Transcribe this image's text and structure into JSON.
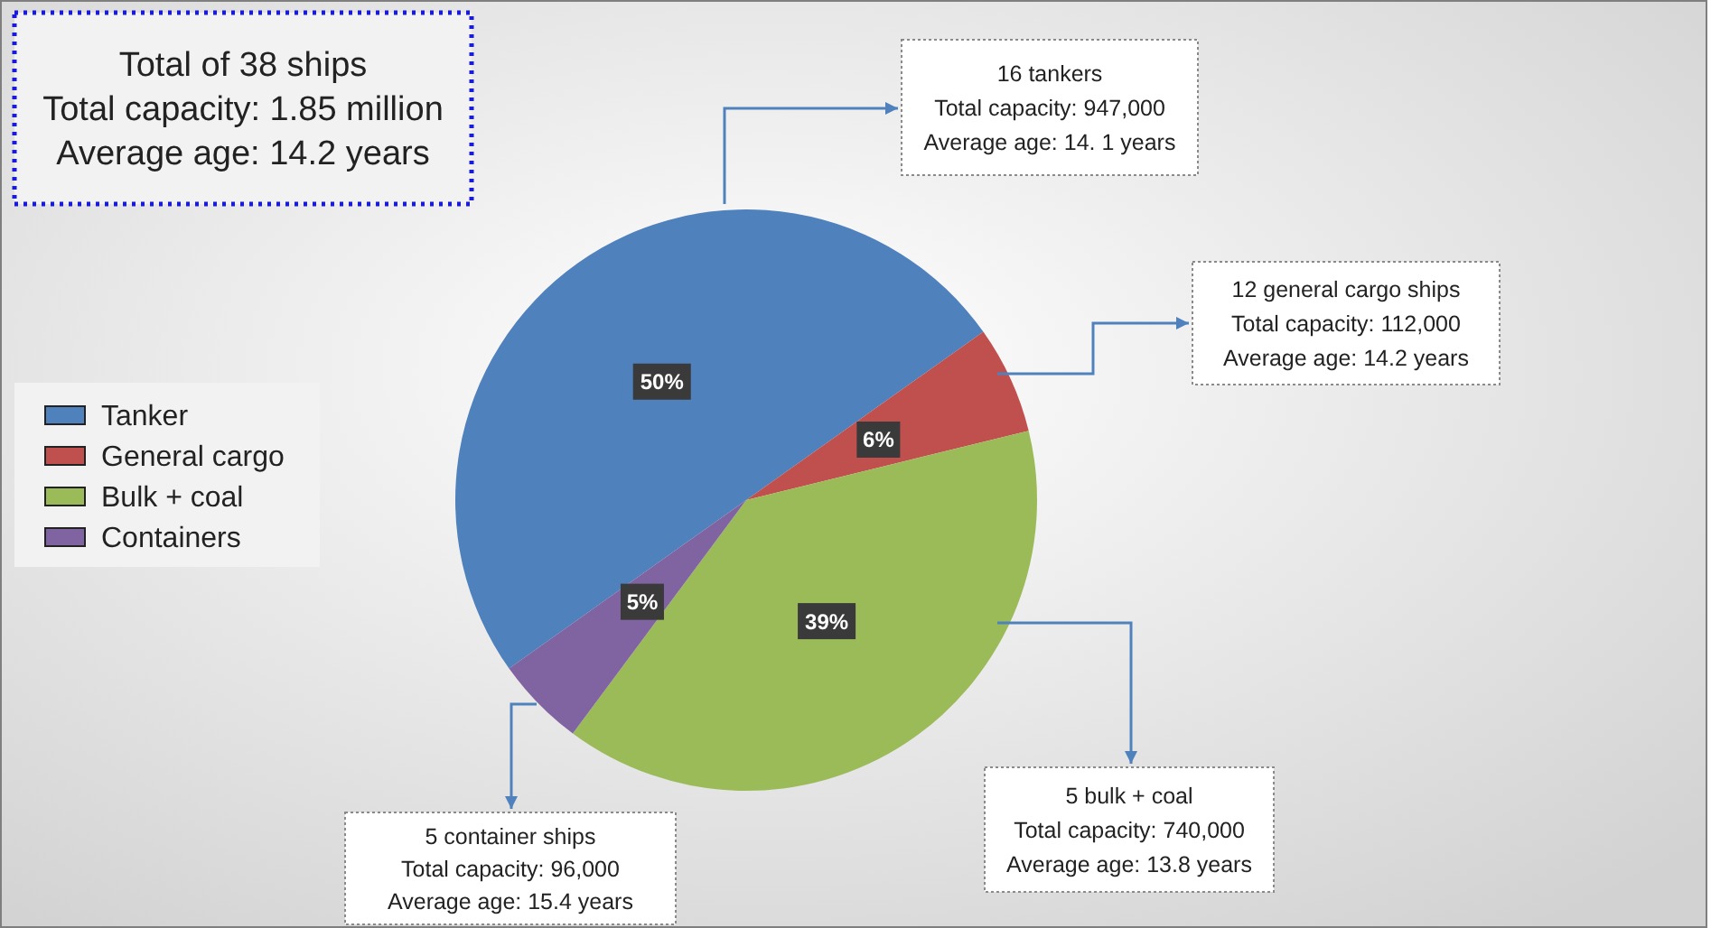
{
  "chart_data": {
    "type": "pie",
    "categories": [
      "Tanker",
      "General cargo",
      "Bulk + coal",
      "Containers"
    ],
    "values": [
      50,
      6,
      39,
      5
    ],
    "colors": [
      "#4f81bd",
      "#c0504d",
      "#9bbb59",
      "#8064a2"
    ],
    "value_labels": [
      "50%",
      "6%",
      "39%",
      "5%"
    ],
    "legend": "left",
    "annotations": [
      "Total of 38 ships\nTotal capacity: 1.85 million\nAverage age: 14.2 years",
      "16 tankers\nTotal capacity: 947,000\nAverage age: 14. 1 years",
      "12 general cargo ships\nTotal capacity: 112,000\nAverage age: 14.2 years",
      "5 bulk + coal\nTotal capacity: 740,000\nAverage age: 13.8 years",
      "5 container ships\nTotal capacity: 96,000\nAverage age: 15.4 years"
    ]
  }
}
